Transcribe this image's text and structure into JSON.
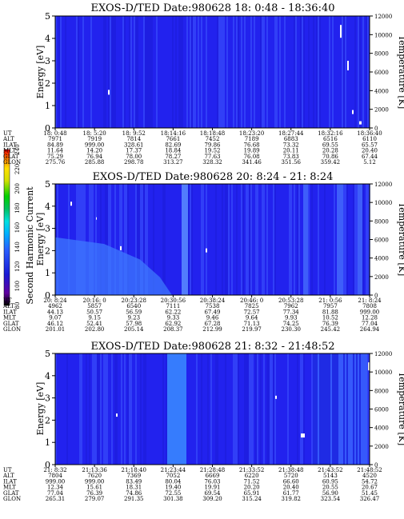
{
  "chart_data": [
    {
      "type": "heatmap",
      "title": "EXOS-D/TED   Date:980628  18: 0:48 - 18:36:40",
      "ylabel": "Energy [eV]",
      "y2label": "Temperature [K]",
      "ylim": [
        0,
        5
      ],
      "y2lim": [
        0,
        12000
      ],
      "yticks": [
        "0",
        "1",
        "2",
        "3",
        "4",
        "5"
      ],
      "y2ticks": [
        "0",
        "2000",
        "4000",
        "6000",
        "8000",
        "10000",
        "12000"
      ],
      "table": {
        "row_labels": [
          "UT",
          "ALT",
          "ILAT",
          "MLT",
          "GLAT",
          "GLON"
        ],
        "columns": [
          [
            "18: 0:48",
            "7971",
            "84.89",
            "11.64",
            "75.29",
            "275.76"
          ],
          [
            "18: 5:20",
            "7919",
            "999.00",
            "14.20",
            "76.94",
            "285.88"
          ],
          [
            "18: 9:52",
            "7814",
            "328.61",
            "17.37",
            "78.00",
            "298.78"
          ],
          [
            "18:14:16",
            "7661",
            "82.69",
            "18.84",
            "78.27",
            "313.27"
          ],
          [
            "18:18:48",
            "7452",
            "79.86",
            "19.52",
            "77.63",
            "328.32"
          ],
          [
            "18:23:20",
            "7189",
            "76.68",
            "19.89",
            "76.08",
            "341.46"
          ],
          [
            "18:27:44",
            "6883",
            "73.32",
            "20.11",
            "73.83",
            "351.56"
          ],
          [
            "18:32:16",
            "6516",
            "69.55",
            "20.28",
            "70.86",
            "359.42"
          ],
          [
            "18:36:40",
            "6110",
            "65.57",
            "20.40",
            "67.44",
            "5.12"
          ]
        ]
      }
    },
    {
      "type": "heatmap",
      "title": "EXOS-D/TED   Date:980628  20: 8:24 - 21: 8:24",
      "ylabel": "Energy [eV]",
      "y2label": "Temperature [K]",
      "ylim": [
        0,
        5
      ],
      "y2lim": [
        0,
        12000
      ],
      "yticks": [
        "0",
        "1",
        "2",
        "3",
        "4",
        "5"
      ],
      "y2ticks": [
        "0",
        "2000",
        "4000",
        "6000",
        "8000",
        "10000",
        "12000"
      ],
      "colorbar": {
        "label": "Second Harmonic Current",
        "ticks": [
          "80",
          "100",
          "120",
          "140",
          "160",
          "180",
          "200",
          "220",
          "240"
        ],
        "range": [
          80,
          240
        ]
      },
      "table": {
        "row_labels": [
          "UT",
          "ALT",
          "ILAT",
          "MLT",
          "GLAT",
          "GLON"
        ],
        "columns": [
          [
            "20: 8:24",
            "4962",
            "44.13",
            "9.07",
            "46.12",
            "201.01"
          ],
          [
            "20:16: 0",
            "5857",
            "50.57",
            "9.15",
            "52.41",
            "202.80"
          ],
          [
            "20:23:28",
            "6540",
            "56.59",
            "9.23",
            "57.98",
            "205.14"
          ],
          [
            "20:30:56",
            "7111",
            "62.22",
            "9.33",
            "62.92",
            "208.37"
          ],
          [
            "20:38:24",
            "7538",
            "67.49",
            "9.46",
            "67.28",
            "212.99"
          ],
          [
            "20:46: 0",
            "7825",
            "72.57",
            "9.64",
            "71.13",
            "219.97"
          ],
          [
            "20:53:28",
            "7962",
            "77.34",
            "9.93",
            "74.25",
            "230.30"
          ],
          [
            "21: 0:56",
            "7957",
            "81.88",
            "10.52",
            "76.39",
            "245.42"
          ],
          [
            "21: 8:24",
            "7808",
            "999.00",
            "12.28",
            "77.04",
            "264.94"
          ]
        ]
      }
    },
    {
      "type": "heatmap",
      "title": "EXOS-D/TED   Date:980628  21: 8:32 - 21:48:52",
      "ylabel": "Energy [eV]",
      "y2label": "Temperature [K]",
      "ylim": [
        0,
        5
      ],
      "y2lim": [
        0,
        12000
      ],
      "yticks": [
        "0",
        "1",
        "2",
        "3",
        "4",
        "5"
      ],
      "y2ticks": [
        "0",
        "2000",
        "4000",
        "6000",
        "8000",
        "10000",
        "12000"
      ],
      "table": {
        "row_labels": [
          "UT",
          "ALT",
          "ILAT",
          "MLT",
          "GLAT",
          "GLON"
        ],
        "columns": [
          [
            "21: 8:32",
            "7804",
            "999.00",
            "12.34",
            "77.04",
            "265.31"
          ],
          [
            "21:13:36",
            "7620",
            "999.00",
            "15.61",
            "76.39",
            "279.07"
          ],
          [
            "21:18:40",
            "7369",
            "83.49",
            "18.31",
            "74.86",
            "291.35"
          ],
          [
            "21:23:44",
            "7052",
            "80.04",
            "19.40",
            "72.55",
            "301.38"
          ],
          [
            "21:28:48",
            "6669",
            "76.03",
            "19.91",
            "69.54",
            "309.20"
          ],
          [
            "21:33:52",
            "6220",
            "71.52",
            "20.20",
            "65.91",
            "315.24"
          ],
          [
            "21:38:48",
            "5720",
            "66.60",
            "20.40",
            "61.77",
            "319.82"
          ],
          [
            "21:43:52",
            "5143",
            "60.95",
            "20.55",
            "56.90",
            "323.54"
          ],
          [
            "21:48:52",
            "4520",
            "54.72",
            "20.67",
            "51.45",
            "326.47"
          ]
        ]
      }
    }
  ],
  "colors": {
    "background": "#2222ee",
    "stripe_light": "#3f5cff",
    "stripe_dark": "#1a1ad6",
    "hot": "#ffffff",
    "colorbar": [
      "#000000",
      "#5a00a0",
      "#1a1ad6",
      "#2a60ff",
      "#00b0ff",
      "#00e0e0",
      "#00c060",
      "#00d000",
      "#d0e000",
      "#ffe000",
      "#ff8000",
      "#ff0000"
    ]
  }
}
